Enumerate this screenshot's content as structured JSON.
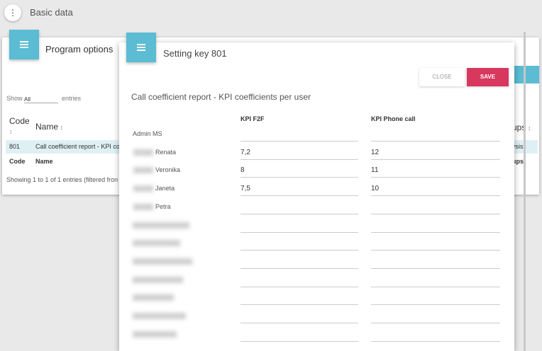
{
  "header": {
    "title": "Basic data"
  },
  "background_card": {
    "title": "Program options",
    "show_label": "Show",
    "show_value": "All",
    "entries_label": "entries",
    "table": {
      "headers": [
        "Code",
        "Name"
      ],
      "rows": [
        [
          "801",
          "Call coefficient report - KPI co"
        ]
      ],
      "footers": [
        "Code",
        "Name"
      ],
      "right_header": "ups",
      "right_cell": "ysis",
      "right_footer": "ups"
    },
    "info": "Showing 1 to 1 of 1 entries (filtered fron"
  },
  "modal": {
    "title": "Setting key 801",
    "buttons": {
      "close": "CLOSE",
      "save": "SAVE"
    },
    "subtitle": "Call coefficient report - KPI coefficients per user",
    "columns": [
      "KPI F2F",
      "KPI Phone call"
    ],
    "rows": [
      {
        "name": "Admin MS"
      },
      {
        "name": "Renata",
        "kpi_f2f": "7,2",
        "kpi_phone_call": "12"
      },
      {
        "name": "Veronika",
        "kpi_f2f": "8",
        "kpi_phone_call": "11"
      },
      {
        "name": "Janeta",
        "kpi_f2f": "7,5",
        "kpi_phone_call": "10"
      },
      {
        "name": "Petra"
      }
    ]
  }
}
